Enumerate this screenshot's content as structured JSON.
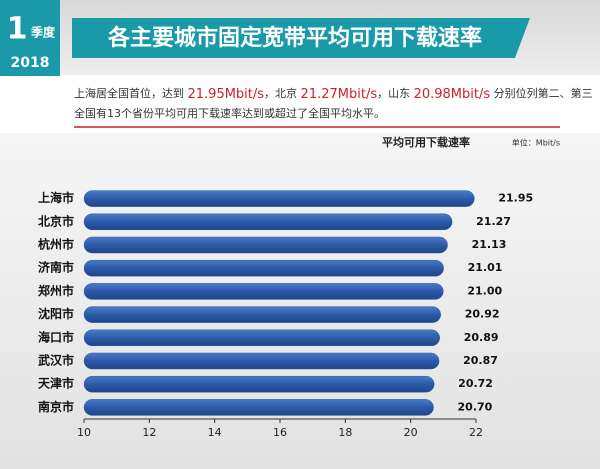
{
  "header": {
    "quarter_number": "1",
    "quarter_label": "季度",
    "year": "2018"
  },
  "summary": {
    "line1": [
      "上海居全国首位，达到 ",
      "21.95Mbit/s",
      "，北京 ",
      "21.27Mbit/s",
      "，山东 ",
      "20.98Mbit/s",
      " 分别位列第二、第三"
    ],
    "line2": "全国有13个省份平均可用下载速率达到或超过了全国平均水平。"
  },
  "chart_data": {
    "type": "hbar",
    "title": "各主要城市固定宽带平均可用下载速率",
    "subtitle": "平均可用下载速率",
    "unit_label": "单位：Mbit/s",
    "categories": [
      "上海市",
      "北京市",
      "杭州市",
      "济南市",
      "郑州市",
      "沈阳市",
      "海口市",
      "武汉市",
      "天津市",
      "南京市"
    ],
    "values": [
      21.95,
      21.27,
      21.13,
      21.01,
      21.0,
      20.92,
      20.89,
      20.87,
      20.72,
      20.7
    ],
    "value_labels": [
      "21.95",
      "21.27",
      "21.13",
      "21.01",
      "21.00",
      "20.92",
      "20.89",
      "20.87",
      "20.72",
      "20.70"
    ],
    "color": "#2c5aa8",
    "xlim": [
      10,
      22
    ],
    "xticks": [
      10,
      12,
      14,
      16,
      18,
      20,
      22
    ]
  }
}
